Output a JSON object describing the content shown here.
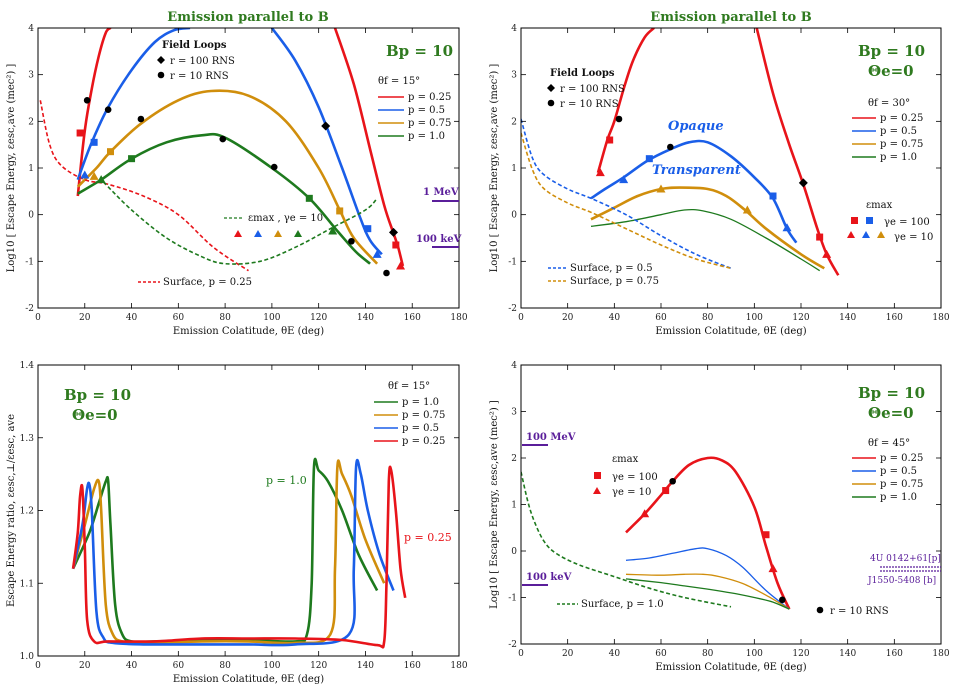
{
  "figure": "Emission parallel to B — escape energies",
  "colors": {
    "p025": "#e8141a",
    "p05": "#1a5ee8",
    "p075": "#d08e0c",
    "p10": "#1e7a1e",
    "purple": "#5a1e9a",
    "green_title": "#2f7a1f",
    "black": "#000000"
  },
  "chart_data": [
    {
      "id": "tl",
      "type": "line",
      "title": "Emission parallel to B",
      "xlabel": "Emission Colatitude, θE (deg)",
      "ylabel": "Log10 [ Escape Energy, εesc,ave (mec²) ]",
      "xlim": [
        0,
        180
      ],
      "ylim": [
        -2,
        4
      ],
      "xticks": [
        "0",
        "20",
        "40",
        "60",
        "80",
        "100",
        "120",
        "140",
        "160",
        "180"
      ],
      "yticks": [
        "-2",
        "-1",
        "0",
        "1",
        "2",
        "3",
        "4"
      ],
      "params": {
        "Bp": "Bp = 10",
        "theta_f": "θf = 15°"
      },
      "legend": [
        "p = 0.25",
        "p = 0.5",
        "p = 0.75",
        "p = 1.0"
      ],
      "field_loops": {
        "title": "Field Loops",
        "r100": "r = 100 RNS",
        "r10": "r = 10 RNS"
      },
      "emax_label": "εmax , γe = 10",
      "surface_label": "Surface, p = 0.25",
      "markers_text": [
        "1 MeV",
        "100 keV"
      ],
      "series": [
        {
          "name": "p = 0.25",
          "color": "p025",
          "x": [
            17,
            20,
            23,
            26,
            29,
            31
          ],
          "y": [
            0.4,
            1.8,
            2.7,
            3.4,
            3.9,
            4.0
          ]
        },
        {
          "name": "p = 0.25 (b)",
          "color": "p025",
          "x": [
            127,
            135,
            142,
            148,
            152,
            154,
            156
          ],
          "y": [
            4.0,
            2.8,
            1.4,
            0.2,
            -0.4,
            -0.7,
            -1.1
          ]
        },
        {
          "name": "p = 0.5",
          "color": "p05",
          "x": [
            17,
            23,
            30,
            40,
            50,
            58,
            65
          ],
          "y": [
            0.75,
            1.55,
            2.3,
            3.1,
            3.7,
            3.95,
            4.0
          ]
        },
        {
          "name": "p = 0.5 (b)",
          "color": "p05",
          "x": [
            100,
            110,
            120,
            130,
            138,
            142,
            147
          ],
          "y": [
            4.0,
            3.3,
            2.3,
            1.0,
            -0.1,
            -0.55,
            -0.85
          ]
        },
        {
          "name": "p = 0.75",
          "color": "p075",
          "x": [
            17,
            25,
            31,
            44,
            60,
            74,
            90,
            106,
            120,
            129,
            135,
            145
          ],
          "y": [
            0.6,
            1.0,
            1.35,
            1.95,
            2.45,
            2.65,
            2.55,
            2.0,
            1.0,
            0.1,
            -0.5,
            -1.05
          ]
        },
        {
          "name": "p = 1.0",
          "color": "p10",
          "x": [
            17,
            27,
            40,
            55,
            70,
            80,
            100,
            116,
            128,
            136,
            142
          ],
          "y": [
            0.45,
            0.75,
            1.2,
            1.55,
            1.7,
            1.65,
            1.0,
            0.35,
            -0.35,
            -0.8,
            -1.05
          ]
        },
        {
          "name": "surface",
          "color": "p025",
          "dashed": true,
          "x": [
            1,
            5,
            10,
            20,
            30,
            45,
            60,
            75,
            90
          ],
          "y": [
            2.45,
            1.5,
            1.05,
            0.75,
            0.65,
            0.4,
            0.0,
            -0.7,
            -1.2
          ]
        },
        {
          "name": "emax g10",
          "color": "p10",
          "dashed": true,
          "x": [
            28,
            40,
            55,
            70,
            80,
            95,
            110,
            125,
            140,
            145
          ],
          "y": [
            0.7,
            0.1,
            -0.5,
            -0.9,
            -1.05,
            -1.0,
            -0.7,
            -0.3,
            0.1,
            0.35
          ]
        }
      ]
    },
    {
      "id": "tr",
      "type": "line",
      "title": "Emission parallel to B",
      "xlabel": "Emission Colatitude, θE (deg)",
      "ylabel": "Log10 [ Escape Energy, εesc,ave (mec²) ]",
      "xlim": [
        0,
        180
      ],
      "ylim": [
        -2,
        4
      ],
      "xticks": [
        "0",
        "20",
        "40",
        "60",
        "80",
        "100",
        "120",
        "140",
        "160",
        "180"
      ],
      "yticks": [
        "-2",
        "-1",
        "0",
        "1",
        "2",
        "3",
        "4"
      ],
      "params": {
        "Bp": "Bp = 10",
        "Theta": "Θe=0",
        "theta_f": "θf = 30°"
      },
      "legend": [
        "p = 0.25",
        "p = 0.5",
        "p = 0.75",
        "p = 1.0"
      ],
      "field_loops": {
        "title": "Field Loops",
        "r100": "r = 100 RNS",
        "r10": "r = 10 RNS"
      },
      "emax": {
        "title": "εmax",
        "g100": "γe = 100",
        "g10": "γe = 10"
      },
      "labels": [
        "Opaque",
        "Transparent"
      ],
      "surface_labels": [
        "Surface, p = 0.5",
        "Surface, p = 0.75"
      ],
      "series": [
        {
          "name": "p = 0.25",
          "color": "p025",
          "x": [
            33,
            37,
            40,
            44,
            48,
            53,
            57
          ],
          "y": [
            0.9,
            1.6,
            2.0,
            2.7,
            3.3,
            3.8,
            4.0
          ]
        },
        {
          "name": "p = 0.25 (b)",
          "color": "p025",
          "x": [
            101,
            108,
            115,
            121,
            127,
            131,
            136
          ],
          "y": [
            4.0,
            2.6,
            1.5,
            0.65,
            -0.3,
            -0.85,
            -1.3
          ]
        },
        {
          "name": "p = 0.5",
          "color": "p05",
          "x": [
            30,
            36,
            44,
            54,
            64,
            72,
            80,
            90,
            100,
            108,
            114,
            118
          ],
          "y": [
            0.35,
            0.55,
            0.8,
            1.15,
            1.4,
            1.55,
            1.55,
            1.25,
            0.8,
            0.35,
            -0.3,
            -0.6
          ]
        },
        {
          "name": "p = 0.75",
          "color": "p075",
          "x": [
            30,
            40,
            50,
            60,
            68,
            80,
            88,
            96,
            105,
            120,
            130
          ],
          "y": [
            -0.1,
            0.15,
            0.4,
            0.55,
            0.58,
            0.55,
            0.4,
            0.1,
            -0.3,
            -0.85,
            -1.15
          ]
        },
        {
          "name": "p = 1.0",
          "color": "p10",
          "x": [
            30,
            45,
            60,
            70,
            78,
            90,
            105,
            120,
            128
          ],
          "y": [
            -0.25,
            -0.15,
            0.0,
            0.1,
            0.08,
            -0.1,
            -0.5,
            -0.95,
            -1.2
          ]
        },
        {
          "name": "surface p0.5",
          "color": "p05",
          "dashed": true,
          "x": [
            0,
            5,
            10,
            20,
            30,
            45,
            60,
            75,
            90
          ],
          "y": [
            2.05,
            1.2,
            0.85,
            0.55,
            0.35,
            0.0,
            -0.45,
            -0.85,
            -1.15
          ]
        },
        {
          "name": "surface p0.75",
          "color": "p075",
          "dashed": true,
          "x": [
            0,
            5,
            10,
            20,
            30,
            45,
            60,
            75,
            90
          ],
          "y": [
            1.75,
            0.95,
            0.55,
            0.25,
            0.05,
            -0.3,
            -0.65,
            -0.95,
            -1.15
          ]
        }
      ]
    },
    {
      "id": "bl",
      "type": "line",
      "xlabel": "Emission Colatitude, θE (deg)",
      "ylabel": "Escape Energy ratio, εesc,⊥/εesc, ave",
      "xlim": [
        0,
        180
      ],
      "ylim": [
        1.0,
        1.4
      ],
      "xticks": [
        "0",
        "20",
        "40",
        "60",
        "80",
        "100",
        "120",
        "140",
        "160",
        "180"
      ],
      "yticks": [
        "1.0",
        "1.1",
        "1.2",
        "1.3",
        "1.4"
      ],
      "params": {
        "Bp": "Bp = 10",
        "Theta": "Θe=0",
        "theta_f": "θf = 15°"
      },
      "legend": [
        "p = 1.0",
        "p = 0.75",
        "p = 0.5",
        "p = 0.25"
      ],
      "annotations": [
        "p = 1.0",
        "p = 0.25"
      ],
      "series": [
        {
          "name": "p = 1.0",
          "color": "p10",
          "x": [
            15,
            22,
            26,
            29,
            30,
            31,
            33,
            36,
            40,
            50,
            70,
            90,
            110,
            115,
            117,
            118,
            120,
            124,
            130,
            137,
            145
          ],
          "y": [
            1.12,
            1.17,
            1.21,
            1.24,
            1.24,
            1.18,
            1.07,
            1.03,
            1.02,
            1.02,
            1.022,
            1.022,
            1.02,
            1.03,
            1.1,
            1.26,
            1.255,
            1.24,
            1.2,
            1.14,
            1.09
          ]
        },
        {
          "name": "p = 0.75",
          "color": "p075",
          "x": [
            15,
            20,
            24,
            26,
            27,
            29,
            32,
            36,
            45,
            70,
            90,
            110,
            125,
            127,
            128,
            130,
            134,
            140,
            148
          ],
          "y": [
            1.12,
            1.18,
            1.23,
            1.24,
            1.2,
            1.07,
            1.03,
            1.02,
            1.018,
            1.02,
            1.02,
            1.018,
            1.03,
            1.12,
            1.26,
            1.25,
            1.22,
            1.16,
            1.1
          ]
        },
        {
          "name": "p = 0.5",
          "color": "p05",
          "x": [
            15,
            19,
            21,
            22,
            23,
            25,
            28,
            32,
            45,
            70,
            90,
            110,
            133,
            135,
            136,
            138,
            141,
            146,
            152
          ],
          "y": [
            1.12,
            1.18,
            1.23,
            1.235,
            1.2,
            1.06,
            1.025,
            1.018,
            1.016,
            1.016,
            1.016,
            1.016,
            1.03,
            1.12,
            1.26,
            1.25,
            1.2,
            1.14,
            1.09
          ]
        },
        {
          "name": "p = 0.25",
          "color": "p025",
          "x": [
            15,
            17,
            18,
            19,
            20,
            21,
            24,
            30,
            50,
            70,
            90,
            110,
            130,
            145,
            148,
            149,
            150,
            151,
            153,
            155,
            157
          ],
          "y": [
            1.12,
            1.17,
            1.22,
            1.23,
            1.15,
            1.05,
            1.02,
            1.02,
            1.02,
            1.024,
            1.024,
            1.024,
            1.022,
            1.015,
            1.02,
            1.1,
            1.24,
            1.255,
            1.2,
            1.12,
            1.08
          ]
        }
      ]
    },
    {
      "id": "br",
      "type": "line",
      "xlabel": "Emission Colatitude, θE (deg)",
      "ylabel": "Log10 [ Escape Energy, εesc,ave (mec²) ]",
      "xlim": [
        0,
        180
      ],
      "ylim": [
        -2,
        4
      ],
      "xticks": [
        "0",
        "20",
        "40",
        "60",
        "80",
        "100",
        "120",
        "140",
        "160",
        "180"
      ],
      "yticks": [
        "-2",
        "-1",
        "0",
        "1",
        "2",
        "3",
        "4"
      ],
      "params": {
        "Bp": "Bp = 10",
        "Theta": "Θe=0",
        "theta_f": "θf = 45°"
      },
      "legend": [
        "p = 0.25",
        "p = 0.5",
        "p = 0.75",
        "p = 1.0"
      ],
      "emax": {
        "title": "εmax",
        "g100": "γe = 100",
        "g10": "γe = 10"
      },
      "markers_text": [
        "100 MeV",
        "100 keV"
      ],
      "surface_label": "Surface, p = 1.0",
      "r10": "r = 10 RNS",
      "sources": [
        "4U 0142+61[p]",
        "J1550-5408 [b]"
      ],
      "series": [
        {
          "name": "p = 0.25",
          "color": "p025",
          "x": [
            45,
            53,
            60,
            65,
            72,
            80,
            86,
            92,
            100,
            105,
            110,
            115
          ],
          "y": [
            0.4,
            0.8,
            1.2,
            1.5,
            1.85,
            2.0,
            1.95,
            1.7,
            0.95,
            0.1,
            -0.7,
            -1.25
          ]
        },
        {
          "name": "p = 0.5",
          "color": "p05",
          "x": [
            45,
            55,
            65,
            75,
            80,
            88,
            95,
            105,
            115
          ],
          "y": [
            -0.2,
            -0.15,
            -0.05,
            0.05,
            0.05,
            -0.1,
            -0.35,
            -0.85,
            -1.25
          ]
        },
        {
          "name": "p = 0.75",
          "color": "p075",
          "x": [
            45,
            60,
            70,
            78,
            85,
            95,
            105,
            115
          ],
          "y": [
            -0.5,
            -0.52,
            -0.5,
            -0.5,
            -0.55,
            -0.7,
            -0.95,
            -1.25
          ]
        },
        {
          "name": "p = 1.0",
          "color": "p10",
          "x": [
            45,
            60,
            70,
            80,
            90,
            100,
            108,
            115
          ],
          "y": [
            -0.6,
            -0.68,
            -0.75,
            -0.82,
            -0.9,
            -1.0,
            -1.1,
            -1.25
          ]
        },
        {
          "name": "surface p1.0",
          "color": "p10",
          "dashed": true,
          "x": [
            0,
            3,
            6,
            10,
            15,
            25,
            40,
            55,
            70,
            90
          ],
          "y": [
            1.7,
            1.05,
            0.6,
            0.2,
            -0.05,
            -0.3,
            -0.55,
            -0.8,
            -1.0,
            -1.2
          ]
        }
      ]
    }
  ]
}
